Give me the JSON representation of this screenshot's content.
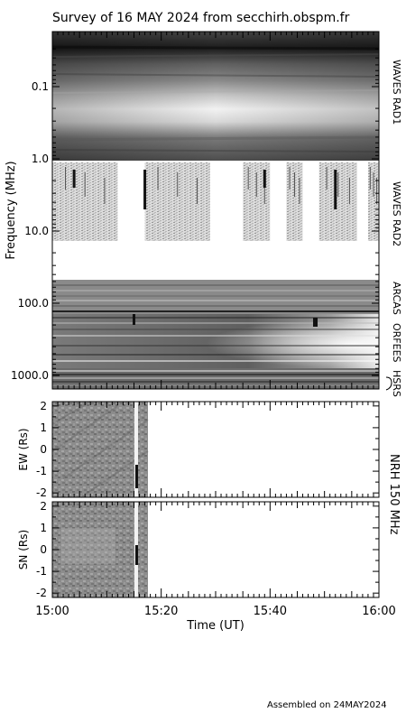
{
  "chart_data": {
    "type": "heatmap",
    "title": "Survey of 16 MAY 2024 from secchirh.obspm.fr",
    "footer": "Assembled on 24MAY2024",
    "spectrogram": {
      "ylabel": "Frequency (MHz)",
      "yscale": "log",
      "yrange_mhz": [
        0.02,
        1500
      ],
      "ytick_labels": [
        "0.1",
        "1.0",
        "10.0",
        "100.0",
        "1000.0"
      ],
      "ytick_values": [
        0.1,
        1.0,
        10.0,
        100.0,
        1000.0
      ],
      "instruments": [
        {
          "name": "WAVES RAD1",
          "freq_range_mhz": [
            0.02,
            1.0
          ]
        },
        {
          "name": "WAVES RAD2",
          "freq_range_mhz": [
            1.0,
            14.0
          ]
        },
        {
          "name": "ARCAS",
          "freq_range_mhz": [
            45,
            200
          ]
        },
        {
          "name": "ORFEES",
          "freq_range_mhz": [
            200,
            1000
          ]
        },
        {
          "name": "HSRS",
          "freq_range_mhz": [
            1000,
            1500
          ]
        }
      ],
      "rad2_data_segments_utc": [
        [
          "15:00",
          "15:12"
        ],
        [
          "15:17",
          "15:29"
        ],
        [
          "15:35",
          "15:40"
        ],
        [
          "15:43",
          "15:46"
        ],
        [
          "15:49",
          "15:56"
        ],
        [
          "15:58",
          "16:00"
        ]
      ],
      "burst_times_utc": [
        "15:04",
        "15:17",
        "15:39",
        "15:52"
      ]
    },
    "nrh": {
      "instrument_label": "NRH 150 MHz",
      "panels": [
        {
          "ylabel": "EW (Rs)",
          "yrange": [
            -2.2,
            2.2
          ],
          "ytick_labels": [
            "2",
            "1",
            "0",
            "-1",
            "-2"
          ]
        },
        {
          "ylabel": "SN (Rs)",
          "yrange": [
            -2.2,
            2.2
          ],
          "ytick_labels": [
            "2",
            "1",
            "0",
            "-1",
            "-2"
          ]
        }
      ],
      "data_end_utc": "15:18",
      "event_time_utc": "15:15"
    },
    "x": {
      "label": "Time (UT)",
      "range": [
        "15:00",
        "16:00"
      ],
      "tick_labels": [
        "15:00",
        "15:20",
        "15:40",
        "16:00"
      ]
    }
  }
}
